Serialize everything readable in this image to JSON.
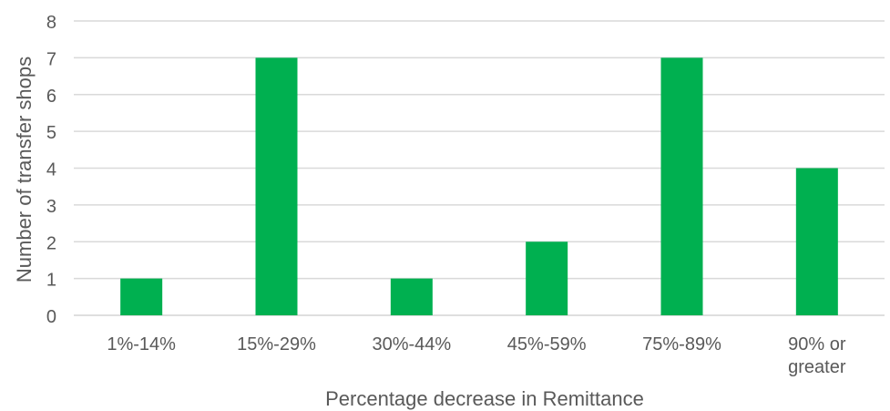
{
  "chart_data": {
    "type": "bar",
    "categories": [
      [
        "1%-14%"
      ],
      [
        "15%-29%"
      ],
      [
        "30%-44%"
      ],
      [
        "45%-59%"
      ],
      [
        "75%-89%"
      ],
      [
        "90% or",
        "greater"
      ]
    ],
    "values": [
      1,
      7,
      1,
      2,
      7,
      4
    ],
    "xlabel": "Percentage decrease in Remittance",
    "ylabel": "Number of transfer shops",
    "ylim": [
      0,
      8
    ],
    "yticks": [
      "0",
      "1",
      "2",
      "3",
      "4",
      "5",
      "6",
      "7",
      "8"
    ],
    "grid": true,
    "legend": "none",
    "colors": {
      "bar": "#00b050",
      "grid": "#d9d9d9",
      "text": "#595959"
    }
  }
}
